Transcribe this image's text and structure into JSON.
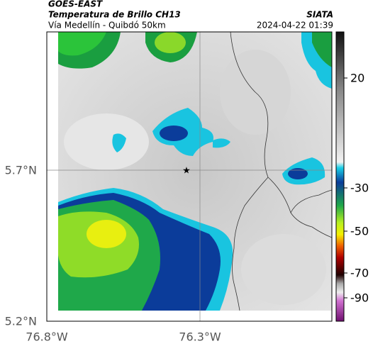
{
  "header": {
    "source": "GOES-EAST",
    "title": "Temperatura de Brillo CH13",
    "route": "Vía Medellín - Quibdó 50km",
    "agency": "SIATA",
    "datetime": "2024-04-22 01:39"
  },
  "axes": {
    "lat_ticks": [
      "5.7°N",
      "5.2°N"
    ],
    "lon_ticks": [
      "76.8°W",
      "76.3°W"
    ]
  },
  "colorbar": {
    "ticks": [
      20,
      -30,
      -50,
      -70,
      -90
    ]
  }
}
